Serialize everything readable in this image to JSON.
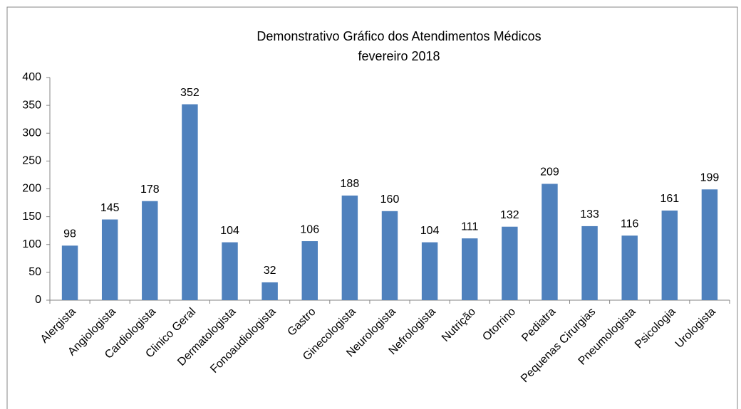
{
  "chart_data": {
    "type": "bar",
    "title": "Demonstrativo Gráfico dos Atendimentos Médicos",
    "subtitle": "fevereiro 2018",
    "categories": [
      "Alergista",
      "Angiologista",
      "Cardiologista",
      "Clinico Geral",
      "Dermatologista",
      "Fonoaudiologista",
      "Gastro",
      "Ginecologista",
      "Neurologista",
      "Nefrologista",
      "Nutrição",
      "Otorrino",
      "Pediatra",
      "Pequenas Cirurgias",
      "Pneumologista",
      "Psicologia",
      "Urologista"
    ],
    "values": [
      98,
      145,
      178,
      352,
      104,
      32,
      106,
      188,
      160,
      104,
      111,
      132,
      209,
      133,
      116,
      161,
      199
    ],
    "color": "#4f81bd",
    "ylim": [
      0,
      400
    ],
    "yticks": [
      0,
      50,
      100,
      150,
      200,
      250,
      300,
      350,
      400
    ],
    "grid": false
  }
}
